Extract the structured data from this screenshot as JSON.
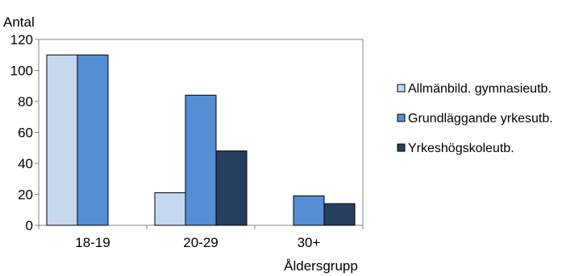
{
  "chart_data": {
    "type": "bar",
    "title": "",
    "ylabel": "Antal",
    "xlabel": "Åldersgrupp",
    "ylim": [
      0,
      120
    ],
    "yticks": [
      0,
      20,
      40,
      60,
      80,
      100,
      120
    ],
    "categories": [
      "18-19",
      "20-29",
      "30+"
    ],
    "series": [
      {
        "name": "Allmänbild. gymnasieutb.",
        "color": "#c6d9f1",
        "values": [
          110,
          21,
          null
        ]
      },
      {
        "name": "Grundläggande yrkesutb.",
        "color": "#558ed5",
        "values": [
          110,
          84,
          19
        ]
      },
      {
        "name": "Yrkeshögskoleutb.",
        "color": "#263f5e",
        "values": [
          null,
          48,
          14
        ]
      }
    ],
    "legend_position": "right",
    "grid": false
  }
}
